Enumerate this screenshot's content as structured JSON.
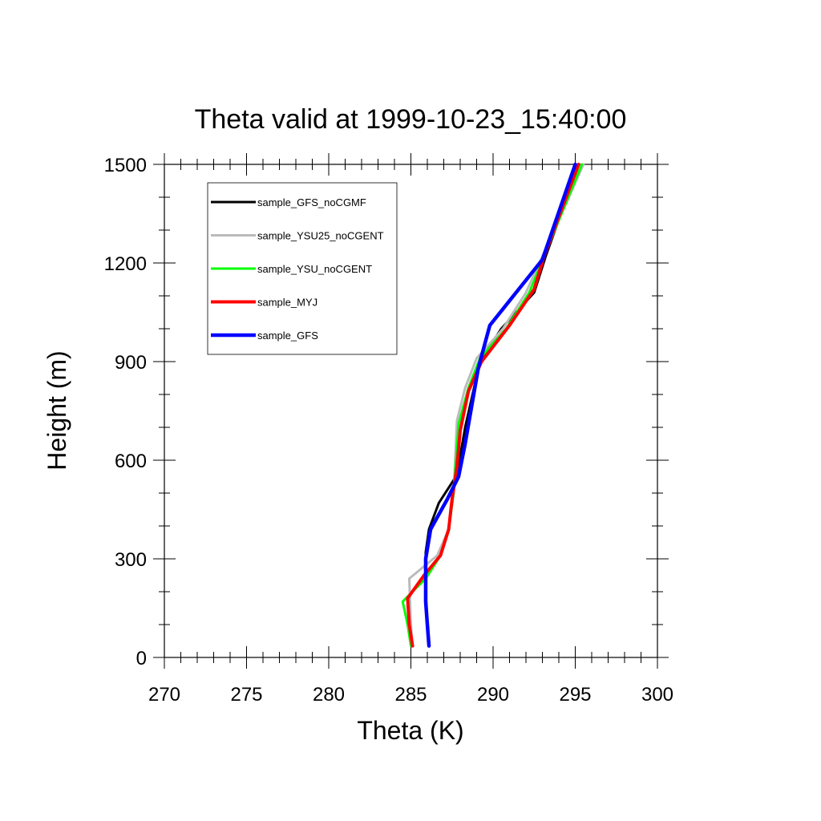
{
  "chart_data": {
    "type": "line",
    "title": "Theta valid at 1999-10-23_15:40:00",
    "xlabel": "Theta (K)",
    "ylabel": "Height (m)",
    "xlim": [
      270,
      300
    ],
    "ylim": [
      0,
      1500
    ],
    "xticks": [
      270,
      275,
      280,
      285,
      290,
      295,
      300
    ],
    "yticks": [
      0,
      300,
      600,
      900,
      1200,
      1500
    ],
    "grid": false,
    "legend_position": "top-left",
    "series": [
      {
        "name": "sample_GFS_noCGMF",
        "color": "#000000",
        "points": [
          [
            286.1,
            35
          ],
          [
            286.0,
            100
          ],
          [
            285.9,
            200
          ],
          [
            285.9,
            320
          ],
          [
            286.1,
            390
          ],
          [
            286.7,
            470
          ],
          [
            287.8,
            555
          ],
          [
            288.3,
            700
          ],
          [
            289.2,
            900
          ],
          [
            290.5,
            1000
          ],
          [
            292.5,
            1110
          ],
          [
            293.2,
            1220
          ],
          [
            295.2,
            1500
          ]
        ]
      },
      {
        "name": "sample_YSU25_noCGENT",
        "color": "#bbbbbb",
        "points": [
          [
            285.1,
            35
          ],
          [
            285.0,
            100
          ],
          [
            284.9,
            240
          ],
          [
            286.6,
            310
          ],
          [
            287.3,
            390
          ],
          [
            287.6,
            500
          ],
          [
            287.8,
            720
          ],
          [
            288.3,
            820
          ],
          [
            289.0,
            910
          ],
          [
            290.6,
            1000
          ],
          [
            292.0,
            1110
          ],
          [
            293.0,
            1220
          ],
          [
            295.5,
            1500
          ]
        ]
      },
      {
        "name": "sample_YSU_noCGENT",
        "color": "#00ff00",
        "points": [
          [
            285.0,
            35
          ],
          [
            284.8,
            100
          ],
          [
            284.5,
            170
          ],
          [
            285.9,
            240
          ],
          [
            286.8,
            310
          ],
          [
            287.3,
            390
          ],
          [
            287.6,
            500
          ],
          [
            287.9,
            710
          ],
          [
            288.5,
            820
          ],
          [
            289.2,
            910
          ],
          [
            290.8,
            1000
          ],
          [
            292.2,
            1110
          ],
          [
            293.1,
            1220
          ],
          [
            295.4,
            1500
          ]
        ]
      },
      {
        "name": "sample_MYJ",
        "color": "#ff0000",
        "points": [
          [
            285.1,
            35
          ],
          [
            284.9,
            100
          ],
          [
            284.8,
            180
          ],
          [
            285.8,
            250
          ],
          [
            286.8,
            310
          ],
          [
            287.3,
            390
          ],
          [
            287.5,
            480
          ],
          [
            287.8,
            580
          ],
          [
            288.0,
            690
          ],
          [
            288.5,
            810
          ],
          [
            289.3,
            900
          ],
          [
            291.0,
            1010
          ],
          [
            292.5,
            1120
          ],
          [
            293.1,
            1220
          ],
          [
            295.2,
            1500
          ]
        ]
      },
      {
        "name": "sample_GFS",
        "color": "#0000ff",
        "points": [
          [
            286.1,
            35
          ],
          [
            286.0,
            100
          ],
          [
            285.9,
            170
          ],
          [
            285.9,
            300
          ],
          [
            286.2,
            390
          ],
          [
            287.2,
            480
          ],
          [
            287.9,
            550
          ],
          [
            288.3,
            650
          ],
          [
            289.1,
            880
          ],
          [
            289.8,
            1010
          ],
          [
            291.4,
            1110
          ],
          [
            293.0,
            1210
          ],
          [
            295.0,
            1500
          ]
        ]
      }
    ]
  }
}
